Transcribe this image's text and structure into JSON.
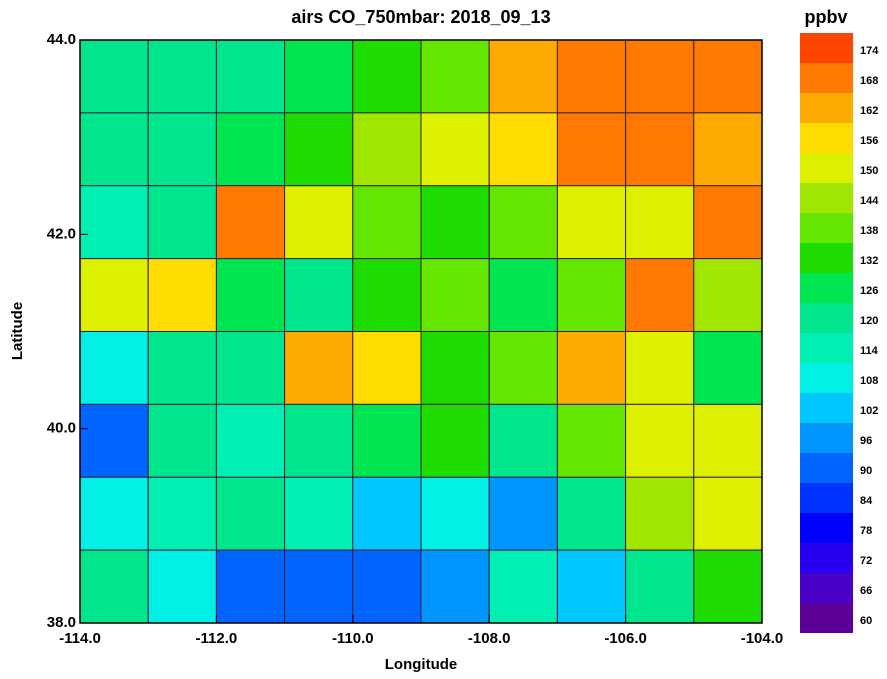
{
  "chart_data": [
    {
      "type": "heatmap",
      "title": "airs CO_750mbar: 2018_09_13",
      "x_label": "Longitude",
      "y_label": "Latitude",
      "xlim": [
        -114,
        -104
      ],
      "ylim": [
        38,
        44
      ],
      "xticks": [
        {
          "value": -114,
          "label": "-114.0"
        },
        {
          "value": -112,
          "label": "-112.0"
        },
        {
          "value": -110,
          "label": "-110.0"
        },
        {
          "value": -108,
          "label": "-108.0"
        },
        {
          "value": -106,
          "label": "-106.0"
        },
        {
          "value": -104,
          "label": "-104.0"
        }
      ],
      "yticks": [
        {
          "value": 38,
          "label": "38.0"
        },
        {
          "value": 40,
          "label": "40.0"
        },
        {
          "value": 42,
          "label": "42.0"
        },
        {
          "value": 44,
          "label": "44.0"
        }
      ],
      "z": [
        [
          125,
          120,
          125,
          130,
          135,
          140,
          165,
          170,
          172,
          170
        ],
        [
          120,
          125,
          130,
          135,
          145,
          150,
          160,
          170,
          168,
          165
        ],
        [
          115,
          125,
          170,
          150,
          140,
          135,
          140,
          150,
          155,
          170
        ],
        [
          150,
          160,
          130,
          125,
          135,
          140,
          130,
          140,
          170,
          145
        ],
        [
          110,
          125,
          120,
          165,
          160,
          135,
          140,
          165,
          150,
          130
        ],
        [
          95,
          120,
          115,
          125,
          130,
          135,
          125,
          140,
          150,
          155
        ],
        [
          110,
          115,
          120,
          115,
          105,
          110,
          100,
          120,
          145,
          155
        ],
        [
          120,
          110,
          95,
          90,
          95,
          100,
          115,
          105,
          120,
          135
        ]
      ]
    },
    {
      "type": "colorbar",
      "title": "ppbv",
      "ylim": [
        60,
        180
      ],
      "levels": [
        60,
        66,
        72,
        78,
        84,
        90,
        96,
        102,
        108,
        114,
        120,
        126,
        132,
        138,
        144,
        150,
        156,
        162,
        168,
        174
      ],
      "colors": [
        "#5a0096",
        "#4b00c8",
        "#2800f0",
        "#0000ff",
        "#0032ff",
        "#0064ff",
        "#0096ff",
        "#00c8ff",
        "#00f0e6",
        "#00f0b4",
        "#00e68c",
        "#00e650",
        "#1edc00",
        "#64e600",
        "#a0e600",
        "#dcf000",
        "#ffdc00",
        "#ffaa00",
        "#ff7800",
        "#ff4600"
      ]
    }
  ]
}
